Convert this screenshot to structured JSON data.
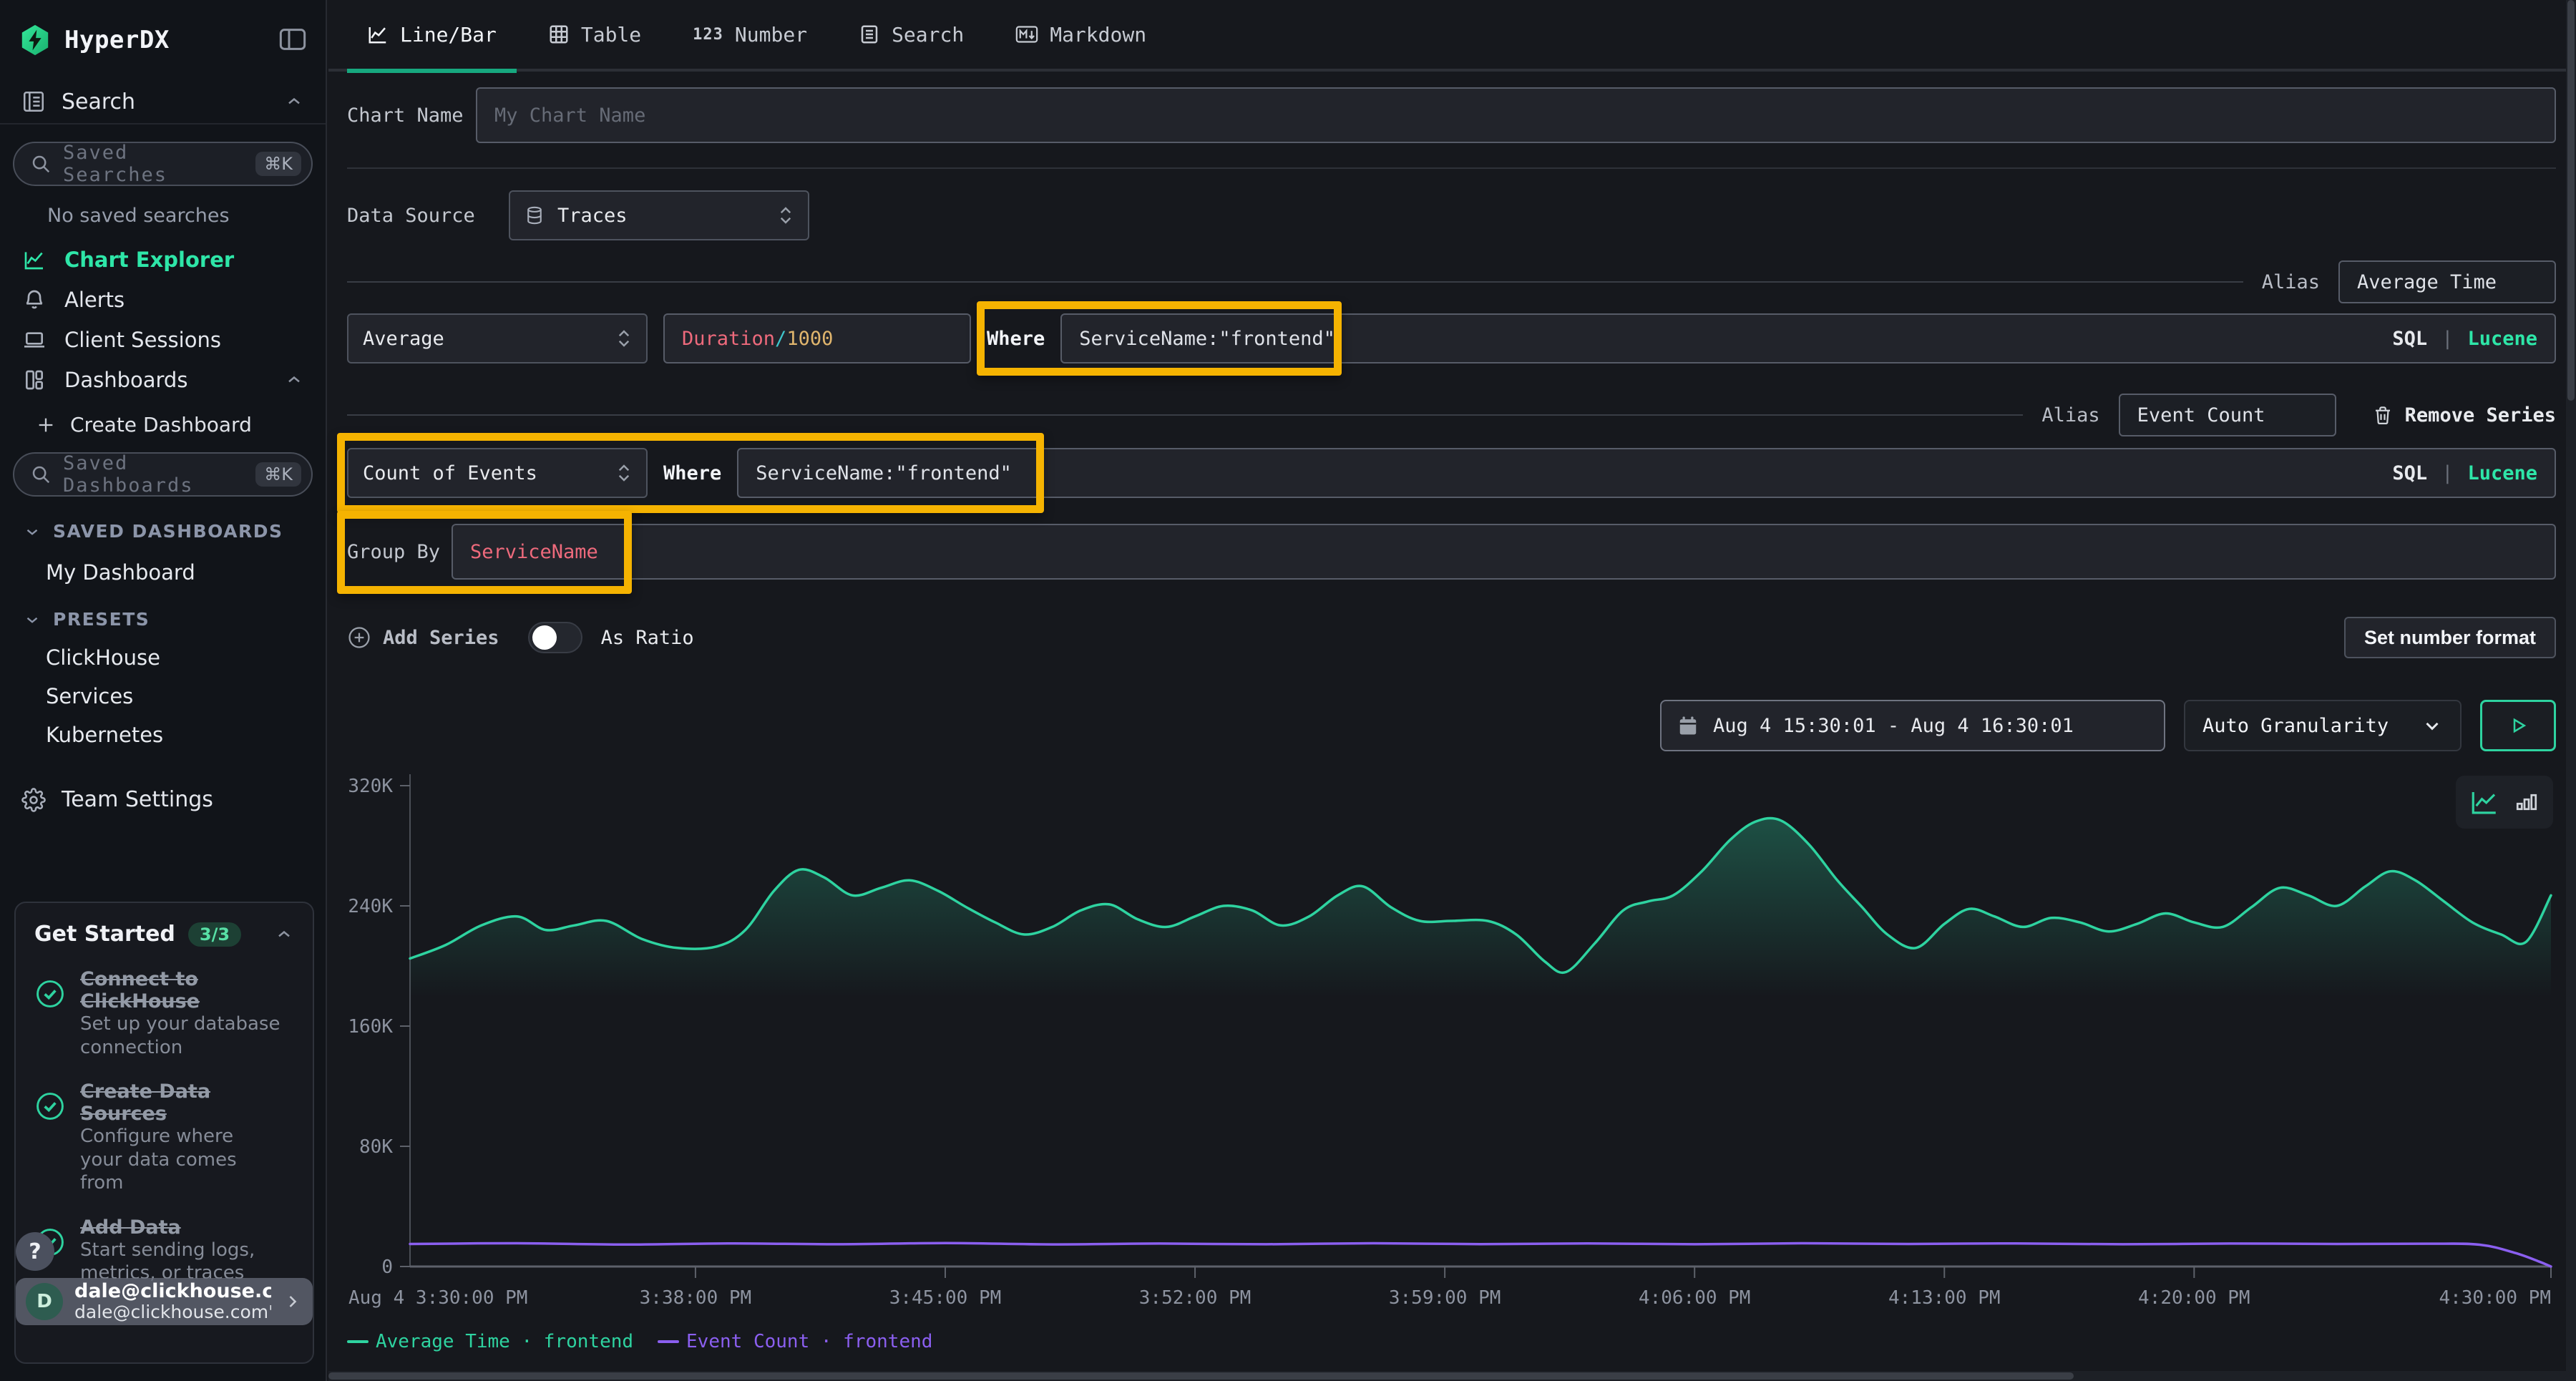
{
  "app": {
    "name": "HyperDX"
  },
  "colors": {
    "accent": "#2ee6a8",
    "highlight_box": "#f5b301",
    "series_green": "#2ed3a0",
    "series_purple": "#8b5ff0",
    "token_red": "#ee6a7c",
    "token_teal": "#3fc6cc",
    "token_amber": "#e0b56d"
  },
  "sidebar": {
    "search_section": {
      "label": "Search",
      "input_placeholder": "Saved Searches",
      "shortcut": "⌘K",
      "empty_text": "No saved searches"
    },
    "nav": [
      {
        "label": "Chart Explorer"
      },
      {
        "label": "Alerts"
      },
      {
        "label": "Client Sessions"
      },
      {
        "label": "Dashboards"
      }
    ],
    "dashboards_section": {
      "create_label": "Create Dashboard",
      "input_placeholder": "Saved Dashboards",
      "shortcut": "⌘K",
      "saved_group_label": "SAVED DASHBOARDS",
      "saved_items": [
        "My Dashboard"
      ],
      "presets_group_label": "PRESETS",
      "preset_items": [
        "ClickHouse",
        "Services",
        "Kubernetes"
      ]
    },
    "team_settings_label": "Team Settings",
    "get_started": {
      "title": "Get Started",
      "badge": "3/3",
      "items": [
        {
          "title": "Connect to ClickHouse",
          "description": "Set up your database connection"
        },
        {
          "title": "Create Data Sources",
          "description": "Configure where your data comes from"
        },
        {
          "title": "Add Data",
          "description": "Start sending logs, metrics, or traces"
        }
      ]
    },
    "help_label": "?",
    "user": {
      "avatar_letter": "D",
      "email": "dale@clickhouse.com",
      "subtitle": "dale@clickhouse.com's"
    }
  },
  "tabs": [
    {
      "label": "Line/Bar"
    },
    {
      "label": "Table"
    },
    {
      "label": "Number",
      "icon_text": "123"
    },
    {
      "label": "Search"
    },
    {
      "label": "Markdown"
    }
  ],
  "form": {
    "chart_name": {
      "label": "Chart Name",
      "placeholder": "My Chart Name",
      "value": ""
    },
    "data_source": {
      "label": "Data Source",
      "value": "Traces"
    },
    "series": [
      {
        "alias_label": "Alias",
        "alias_value": "Average Time",
        "aggregation": "Average",
        "field_tokens": [
          {
            "text": "Duration",
            "color": "#ee6a7c"
          },
          {
            "text": "/",
            "color": "#3fc6cc"
          },
          {
            "text": "1000",
            "color": "#e0b56d"
          }
        ],
        "where_label": "Where",
        "where_value": "ServiceName:\"frontend\"",
        "sql_label": "SQL",
        "pipe": "|",
        "lucene_label": "Lucene"
      },
      {
        "alias_label": "Alias",
        "alias_value": "Event Count",
        "remove_label": "Remove Series",
        "aggregation": "Count of Events",
        "where_label": "Where",
        "where_value": "ServiceName:\"frontend\"",
        "sql_label": "SQL",
        "pipe": "|",
        "lucene_label": "Lucene"
      }
    ],
    "group_by": {
      "label": "Group By",
      "tokens": [
        {
          "text": "ServiceName",
          "color": "#ee6a7c"
        }
      ]
    },
    "add_series_label": "Add Series",
    "as_ratio_label": "As Ratio",
    "set_number_format_label": "Set number format"
  },
  "toolbar": {
    "time_range": "Aug 4 15:30:01 - Aug 4 16:30:01",
    "granularity": "Auto Granularity"
  },
  "chart_data": {
    "type": "line",
    "unit": "K",
    "ylim": [
      0,
      320
    ],
    "xlim_minutes": [
      0,
      60
    ],
    "grid": false,
    "legend_position": "bottom",
    "y_ticks": [
      {
        "v": 0,
        "label": "0"
      },
      {
        "v": 80,
        "label": "80K"
      },
      {
        "v": 160,
        "label": "160K"
      },
      {
        "v": 240,
        "label": "240K"
      },
      {
        "v": 320,
        "label": "320K"
      }
    ],
    "x_ticks": [
      {
        "t": 0,
        "label": "Aug 4 3:30:00 PM"
      },
      {
        "t": 8,
        "label": "3:38:00 PM"
      },
      {
        "t": 15,
        "label": "3:45:00 PM"
      },
      {
        "t": 22,
        "label": "3:52:00 PM"
      },
      {
        "t": 29,
        "label": "3:59:00 PM"
      },
      {
        "t": 36,
        "label": "4:06:00 PM"
      },
      {
        "t": 43,
        "label": "4:13:00 PM"
      },
      {
        "t": 50,
        "label": "4:20:00 PM"
      },
      {
        "t": 60,
        "label": "4:30:00 PM"
      }
    ],
    "series": [
      {
        "name": "Average Time · frontend",
        "color": "#2ed3a0",
        "area_fill": true,
        "points": [
          [
            0,
            205
          ],
          [
            1,
            214
          ],
          [
            2,
            227
          ],
          [
            3,
            233
          ],
          [
            3.8,
            224
          ],
          [
            4.6,
            227
          ],
          [
            5.5,
            230
          ],
          [
            6.5,
            218
          ],
          [
            7.5,
            212
          ],
          [
            8.6,
            213
          ],
          [
            9.4,
            224
          ],
          [
            10.2,
            250
          ],
          [
            10.9,
            264
          ],
          [
            11.6,
            259
          ],
          [
            12.4,
            247
          ],
          [
            13.2,
            252
          ],
          [
            14,
            257
          ],
          [
            14.8,
            250
          ],
          [
            15.6,
            239
          ],
          [
            16.4,
            229
          ],
          [
            17.2,
            221
          ],
          [
            18,
            226
          ],
          [
            18.8,
            237
          ],
          [
            19.6,
            241
          ],
          [
            20.4,
            231
          ],
          [
            21.2,
            226
          ],
          [
            22,
            233
          ],
          [
            22.8,
            240
          ],
          [
            23.6,
            237
          ],
          [
            24.4,
            227
          ],
          [
            25.2,
            233
          ],
          [
            26,
            247
          ],
          [
            26.7,
            253
          ],
          [
            27.5,
            239
          ],
          [
            28.3,
            230
          ],
          [
            29.2,
            230
          ],
          [
            30.2,
            230
          ],
          [
            31,
            221
          ],
          [
            31.8,
            203
          ],
          [
            32.4,
            196
          ],
          [
            33.2,
            215
          ],
          [
            34,
            237
          ],
          [
            34.7,
            243
          ],
          [
            35.4,
            247
          ],
          [
            36.2,
            263
          ],
          [
            37,
            284
          ],
          [
            37.7,
            296
          ],
          [
            38.4,
            297
          ],
          [
            39.2,
            281
          ],
          [
            40,
            257
          ],
          [
            40.7,
            239
          ],
          [
            41.4,
            221
          ],
          [
            42.2,
            212
          ],
          [
            43,
            228
          ],
          [
            43.7,
            238
          ],
          [
            44.4,
            233
          ],
          [
            45.2,
            226
          ],
          [
            46,
            232
          ],
          [
            46.8,
            229
          ],
          [
            47.6,
            223
          ],
          [
            48.4,
            228
          ],
          [
            49.2,
            235
          ],
          [
            50,
            229
          ],
          [
            50.8,
            226
          ],
          [
            51.6,
            239
          ],
          [
            52.4,
            252
          ],
          [
            53.2,
            247
          ],
          [
            54,
            240
          ],
          [
            54.8,
            253
          ],
          [
            55.5,
            263
          ],
          [
            56.2,
            257
          ],
          [
            57,
            243
          ],
          [
            57.8,
            229
          ],
          [
            58.6,
            221
          ],
          [
            59.3,
            216
          ],
          [
            60,
            247
          ]
        ]
      },
      {
        "name": "Event Count · frontend",
        "color": "#8b5ff0",
        "area_fill": false,
        "points": [
          [
            0,
            15
          ],
          [
            3,
            15.5
          ],
          [
            6,
            14.6
          ],
          [
            9,
            15.4
          ],
          [
            12,
            14.8
          ],
          [
            15,
            15.6
          ],
          [
            18,
            14.7
          ],
          [
            21,
            15.3
          ],
          [
            24,
            14.8
          ],
          [
            27,
            15.5
          ],
          [
            30,
            14.9
          ],
          [
            33,
            15.4
          ],
          [
            36,
            14.8
          ],
          [
            39,
            15.5
          ],
          [
            42,
            15
          ],
          [
            45,
            15.4
          ],
          [
            48,
            14.8
          ],
          [
            51,
            15.3
          ],
          [
            54,
            15
          ],
          [
            56.5,
            15.2
          ],
          [
            58,
            14.5
          ],
          [
            59,
            9
          ],
          [
            59.7,
            3
          ],
          [
            60,
            0
          ]
        ]
      }
    ]
  }
}
